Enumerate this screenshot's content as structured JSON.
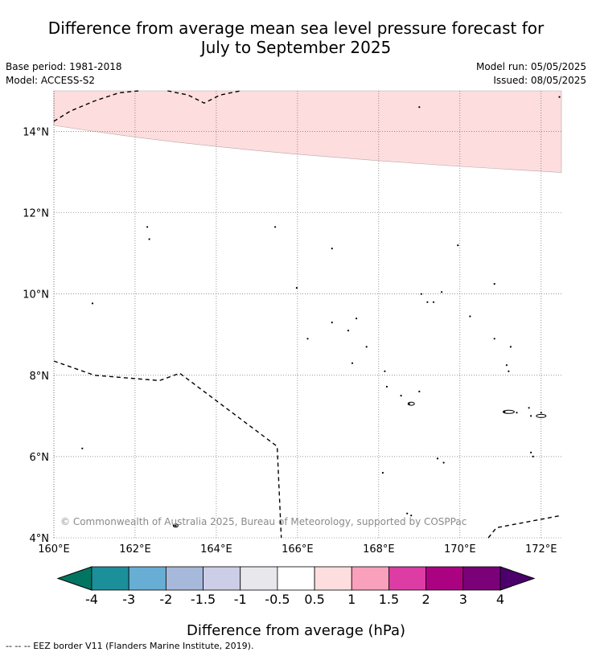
{
  "header": {
    "title_line1": "Difference from average mean sea level pressure forecast for",
    "title_line2": "July to September 2025",
    "base_period": "Base period: 1981-2018",
    "model": "Model: ACCESS-S2",
    "model_run": "Model run: 05/05/2025",
    "issued": "Issued: 08/05/2025"
  },
  "map": {
    "lon_range": [
      160,
      172.5
    ],
    "lat_range": [
      4,
      15
    ],
    "x_ticks": [
      "160°E",
      "162°E",
      "164°E",
      "166°E",
      "168°E",
      "170°E",
      "172°E"
    ],
    "y_ticks": [
      "4°N",
      "6°N",
      "8°N",
      "10°N",
      "12°N",
      "14°N"
    ],
    "shaded_region": {
      "category": "0.5 to 1",
      "boundary_lat": [
        {
          "lon": 160,
          "lat": 14.15
        },
        {
          "lon": 161,
          "lat": 14.0
        },
        {
          "lon": 162,
          "lat": 13.86
        },
        {
          "lon": 163,
          "lat": 13.74
        },
        {
          "lon": 164,
          "lat": 13.63
        },
        {
          "lon": 165,
          "lat": 13.53
        },
        {
          "lon": 166,
          "lat": 13.44
        },
        {
          "lon": 167,
          "lat": 13.36
        },
        {
          "lon": 168,
          "lat": 13.28
        },
        {
          "lon": 169,
          "lat": 13.21
        },
        {
          "lon": 170,
          "lat": 13.14
        },
        {
          "lon": 171,
          "lat": 13.08
        },
        {
          "lon": 172,
          "lat": 13.02
        },
        {
          "lon": 172.5,
          "lat": 12.99
        }
      ]
    },
    "copyright": "© Commonwealth of Australia 2025, Bureau of Meteorology, supported by COSPPac"
  },
  "colorbar": {
    "ticks": [
      "-4",
      "-3",
      "-2",
      "-1.5",
      "-1",
      "-0.5",
      "0.5",
      "1",
      "1.5",
      "2",
      "3",
      "4"
    ],
    "colors": [
      "#017562",
      "#1b8f9a",
      "#68aed4",
      "#a6b9db",
      "#cccde6",
      "#e8e7ec",
      "#ffffff",
      "#fddddd",
      "#f9a0bc",
      "#dc3ca4",
      "#ab0281",
      "#7b0179",
      "#4b006c"
    ],
    "label": "Difference from average (hPa)"
  },
  "footnote": "--  --  -- EEZ border V11 (Flanders Marine Institute, 2019)."
}
